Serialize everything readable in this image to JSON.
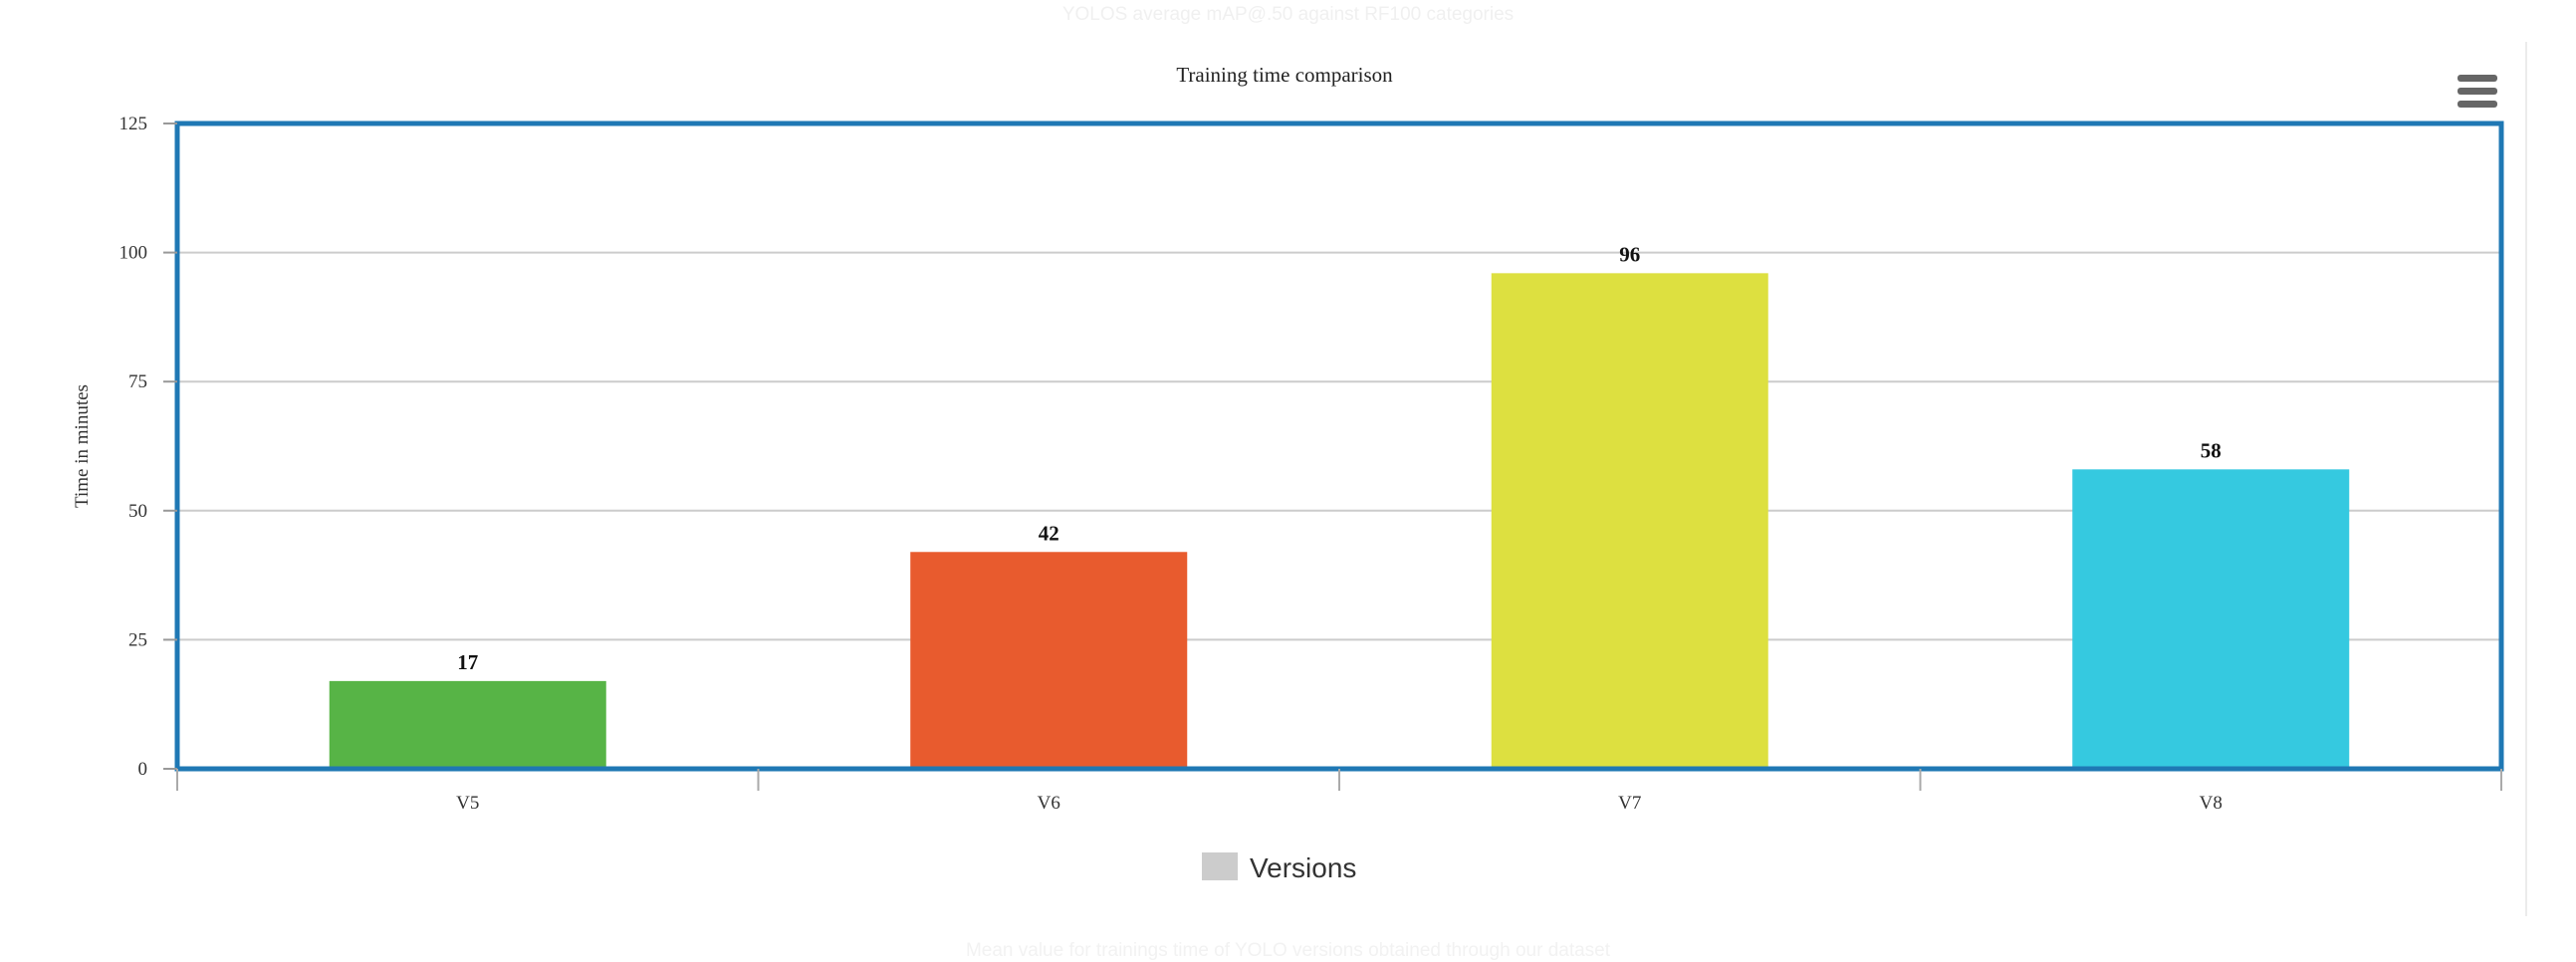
{
  "faded_header": "YOLOS average mAP@.50 against RF100 categories",
  "faded_footer": "Mean value for trainings time of YOLO versions obtained through our dataset",
  "menu_icon": "hamburger-menu-icon",
  "colors": {
    "plot_border": "#1f78b4",
    "gridline": "#cccccc",
    "legend_swatch": "#cccccc"
  },
  "chart_data": {
    "type": "bar",
    "title": "Training time comparison",
    "xlabel": "",
    "ylabel": "Time in minutes",
    "categories": [
      "V5",
      "V6",
      "V7",
      "V8"
    ],
    "values": [
      17,
      42,
      96,
      58
    ],
    "bar_colors": [
      "#57b446",
      "#e85b2e",
      "#dde040",
      "#35c9e0"
    ],
    "ylim": [
      0,
      125
    ],
    "yticks": [
      0,
      25,
      50,
      75,
      100,
      125
    ],
    "grid": true,
    "legend": {
      "label": "Versions",
      "placement": "bottom-center"
    }
  }
}
